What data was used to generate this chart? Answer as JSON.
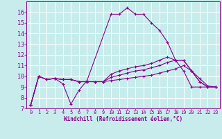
{
  "xlabel": "Windchill (Refroidissement éolien,°C)",
  "xlim": [
    -0.5,
    23.5
  ],
  "ylim": [
    7,
    17.0
  ],
  "yticks": [
    7,
    8,
    9,
    10,
    11,
    12,
    13,
    14,
    15,
    16
  ],
  "xticks": [
    0,
    1,
    2,
    3,
    4,
    5,
    6,
    7,
    8,
    9,
    10,
    11,
    12,
    13,
    14,
    15,
    16,
    17,
    18,
    19,
    20,
    21,
    22,
    23
  ],
  "bg_color": "#c8ecec",
  "line_color": "#880088",
  "grid_color": "#ffffff",
  "lines": [
    {
      "x": [
        0,
        1,
        2,
        3,
        4,
        5,
        6,
        7,
        10,
        11,
        12,
        13,
        14,
        15,
        16,
        17,
        18,
        19,
        20,
        21,
        22,
        23
      ],
      "y": [
        7.3,
        10.0,
        9.7,
        9.8,
        9.3,
        7.4,
        8.7,
        9.6,
        15.8,
        15.8,
        16.4,
        15.8,
        15.8,
        15.0,
        14.3,
        13.2,
        11.5,
        10.5,
        9.0,
        9.0,
        9.0,
        9.0
      ]
    },
    {
      "x": [
        0,
        1,
        2,
        3,
        4,
        5,
        6,
        7,
        8,
        9,
        10,
        11,
        12,
        13,
        14,
        15,
        16,
        17,
        18,
        19,
        20,
        21,
        22,
        23
      ],
      "y": [
        7.3,
        10.0,
        9.7,
        9.8,
        9.7,
        9.7,
        9.5,
        9.5,
        9.5,
        9.5,
        9.6,
        9.7,
        9.8,
        9.9,
        10.0,
        10.1,
        10.3,
        10.5,
        10.7,
        11.0,
        10.5,
        9.5,
        9.0,
        9.0
      ]
    },
    {
      "x": [
        0,
        1,
        2,
        3,
        4,
        5,
        6,
        7,
        8,
        9,
        10,
        11,
        12,
        13,
        14,
        15,
        16,
        17,
        18,
        19,
        20,
        21,
        22,
        23
      ],
      "y": [
        7.3,
        10.0,
        9.7,
        9.8,
        9.7,
        9.7,
        9.5,
        9.5,
        9.5,
        9.5,
        9.9,
        10.1,
        10.3,
        10.5,
        10.6,
        10.8,
        11.0,
        11.3,
        11.5,
        11.5,
        10.5,
        9.8,
        9.1,
        9.0
      ]
    },
    {
      "x": [
        0,
        1,
        2,
        3,
        4,
        5,
        6,
        7,
        8,
        9,
        10,
        11,
        12,
        13,
        14,
        15,
        16,
        17,
        18,
        19,
        20,
        21,
        22,
        23
      ],
      "y": [
        7.3,
        10.0,
        9.7,
        9.8,
        9.7,
        9.7,
        9.5,
        9.5,
        9.5,
        9.5,
        10.2,
        10.5,
        10.7,
        10.9,
        11.0,
        11.2,
        11.5,
        11.8,
        11.5,
        11.5,
        10.5,
        9.5,
        9.0,
        9.0
      ]
    }
  ]
}
